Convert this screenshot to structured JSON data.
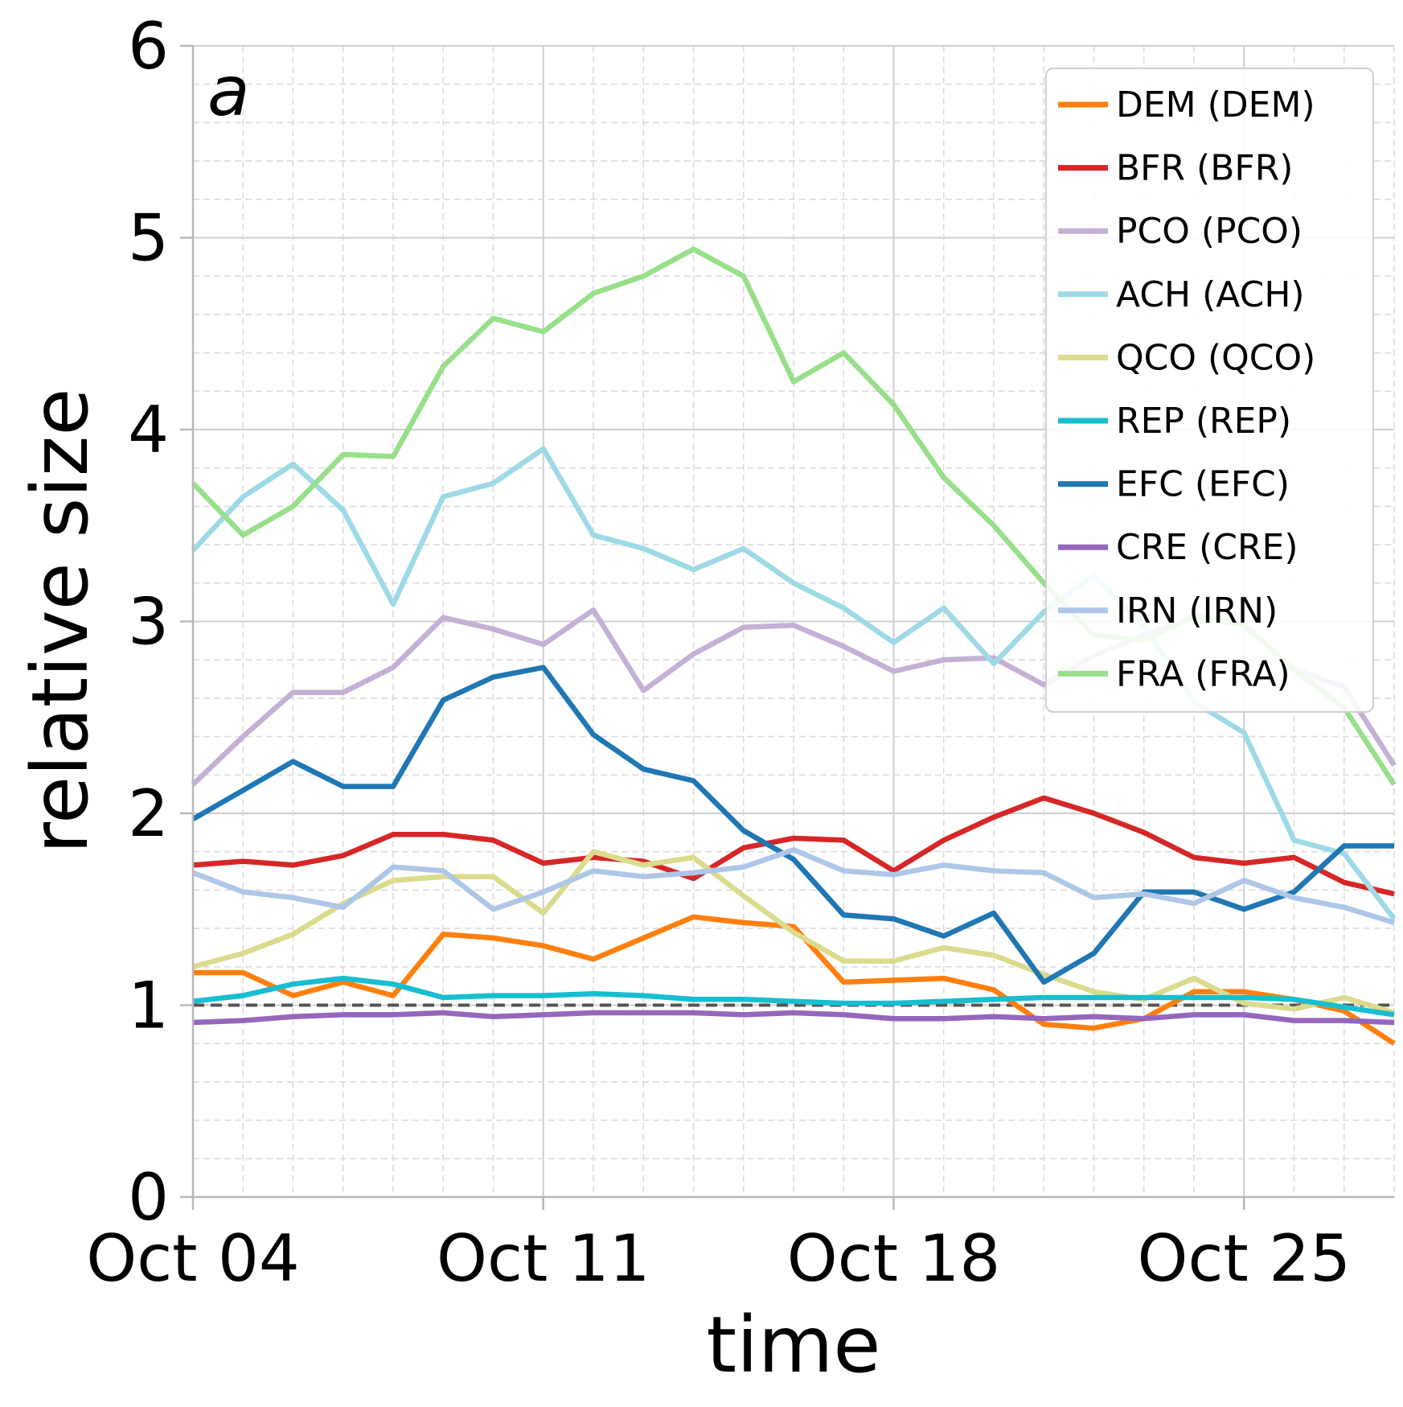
{
  "chart_data": {
    "type": "line",
    "panel_label": "a",
    "xlabel": "time",
    "ylabel": "relative size",
    "ylim": [
      0,
      6
    ],
    "yticks": [
      "0",
      "1",
      "2",
      "3",
      "4",
      "5",
      "6"
    ],
    "xlim": [
      0,
      24
    ],
    "x_start": "Oct 04",
    "xticks": [
      {
        "day": 0,
        "label": "Oct 04"
      },
      {
        "day": 7,
        "label": "Oct 11"
      },
      {
        "day": 14,
        "label": "Oct 18"
      },
      {
        "day": 21,
        "label": "Oct 25"
      }
    ],
    "grid": true,
    "reference_line": {
      "y": 1,
      "style": "dashed"
    },
    "legend_position": "top-right",
    "x": [
      0,
      1,
      2,
      3,
      4,
      5,
      6,
      7,
      8,
      9,
      10,
      11,
      12,
      13,
      14,
      15,
      16,
      17,
      18,
      19,
      20,
      21,
      22,
      23,
      24
    ],
    "series": [
      {
        "name": "DEM (DEM)",
        "color": "#ff7f0e",
        "values": [
          1.17,
          1.17,
          1.05,
          1.12,
          1.05,
          1.37,
          1.35,
          1.31,
          1.24,
          1.35,
          1.46,
          1.43,
          1.41,
          1.12,
          1.13,
          1.14,
          1.08,
          0.9,
          0.88,
          0.93,
          1.07,
          1.07,
          1.03,
          0.97,
          0.8
        ]
      },
      {
        "name": "BFR (BFR)",
        "color": "#d62728",
        "values": [
          1.73,
          1.75,
          1.73,
          1.78,
          1.89,
          1.89,
          1.86,
          1.74,
          1.77,
          1.75,
          1.66,
          1.82,
          1.87,
          1.86,
          1.7,
          1.86,
          1.98,
          2.08,
          2.0,
          1.9,
          1.77,
          1.74,
          1.77,
          1.64,
          1.58
        ]
      },
      {
        "name": "PCO (PCO)",
        "color": "#c5b0d5",
        "values": [
          2.15,
          2.4,
          2.63,
          2.63,
          2.76,
          3.02,
          2.96,
          2.88,
          3.06,
          2.64,
          2.83,
          2.97,
          2.98,
          2.87,
          2.74,
          2.8,
          2.81,
          2.67,
          2.82,
          2.93,
          3.02,
          2.98,
          2.75,
          2.66,
          2.25
        ]
      },
      {
        "name": "ACH (ACH)",
        "color": "#9edae5",
        "values": [
          3.37,
          3.65,
          3.82,
          3.58,
          3.09,
          3.65,
          3.72,
          3.9,
          3.45,
          3.38,
          3.27,
          3.38,
          3.2,
          3.07,
          2.89,
          3.07,
          2.78,
          3.05,
          3.24,
          2.98,
          2.58,
          2.42,
          1.86,
          1.79,
          1.45
        ]
      },
      {
        "name": "QCO (QCO)",
        "color": "#dbdb8d",
        "values": [
          1.2,
          1.27,
          1.37,
          1.53,
          1.65,
          1.67,
          1.67,
          1.48,
          1.8,
          1.73,
          1.77,
          1.57,
          1.38,
          1.23,
          1.23,
          1.3,
          1.26,
          1.16,
          1.07,
          1.03,
          1.14,
          1.01,
          0.98,
          1.04,
          0.96
        ]
      },
      {
        "name": "REP (REP)",
        "color": "#17becf",
        "values": [
          1.02,
          1.05,
          1.11,
          1.14,
          1.11,
          1.04,
          1.05,
          1.05,
          1.06,
          1.05,
          1.03,
          1.03,
          1.02,
          1.01,
          1.01,
          1.02,
          1.03,
          1.04,
          1.04,
          1.04,
          1.04,
          1.04,
          1.03,
          0.99,
          0.95
        ]
      },
      {
        "name": "EFC (EFC)",
        "color": "#1f77b4",
        "values": [
          1.97,
          2.12,
          2.27,
          2.14,
          2.14,
          2.59,
          2.71,
          2.76,
          2.41,
          2.23,
          2.17,
          1.91,
          1.76,
          1.47,
          1.45,
          1.36,
          1.48,
          1.12,
          1.27,
          1.59,
          1.59,
          1.5,
          1.59,
          1.83,
          1.83
        ]
      },
      {
        "name": "CRE (CRE)",
        "color": "#9467bd",
        "values": [
          0.91,
          0.92,
          0.94,
          0.95,
          0.95,
          0.96,
          0.94,
          0.95,
          0.96,
          0.96,
          0.96,
          0.95,
          0.96,
          0.95,
          0.93,
          0.93,
          0.94,
          0.93,
          0.94,
          0.93,
          0.95,
          0.95,
          0.92,
          0.92,
          0.91
        ]
      },
      {
        "name": "IRN (IRN)",
        "color": "#aec7e8",
        "values": [
          1.69,
          1.59,
          1.56,
          1.51,
          1.72,
          1.7,
          1.5,
          1.59,
          1.7,
          1.67,
          1.69,
          1.72,
          1.81,
          1.7,
          1.68,
          1.73,
          1.7,
          1.69,
          1.56,
          1.58,
          1.53,
          1.65,
          1.56,
          1.51,
          1.43
        ]
      },
      {
        "name": "FRA (FRA)",
        "color": "#98df8a",
        "values": [
          3.72,
          3.45,
          3.6,
          3.87,
          3.86,
          4.33,
          4.58,
          4.51,
          4.71,
          4.8,
          4.94,
          4.8,
          4.25,
          4.4,
          4.13,
          3.75,
          3.5,
          3.2,
          2.93,
          2.9,
          3.03,
          2.98,
          2.75,
          2.55,
          2.15
        ]
      }
    ]
  }
}
